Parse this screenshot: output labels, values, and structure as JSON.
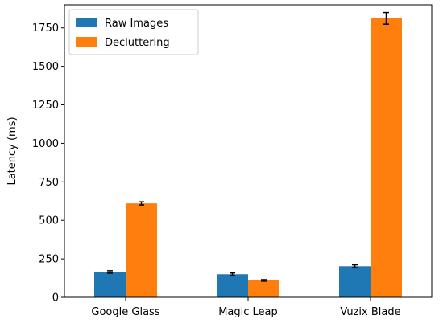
{
  "chart_data": {
    "type": "bar",
    "categories": [
      "Google Glass",
      "Magic Leap",
      "Vuzix Blade"
    ],
    "series": [
      {
        "name": "Raw Images",
        "color": "#1f77b4",
        "values": [
          165,
          150,
          202
        ],
        "errors": [
          8,
          8,
          9
        ]
      },
      {
        "name": "Decluttering",
        "color": "#ff7f0e",
        "values": [
          610,
          110,
          1812
        ],
        "errors": [
          10,
          5,
          38
        ]
      }
    ],
    "title": "",
    "xlabel": "",
    "ylabel": "Latency (ms)",
    "ylim": [
      0,
      1900
    ],
    "yticks": [
      0,
      250,
      500,
      750,
      1000,
      1250,
      1500,
      1750
    ],
    "grid": false,
    "legend": "top-left"
  }
}
